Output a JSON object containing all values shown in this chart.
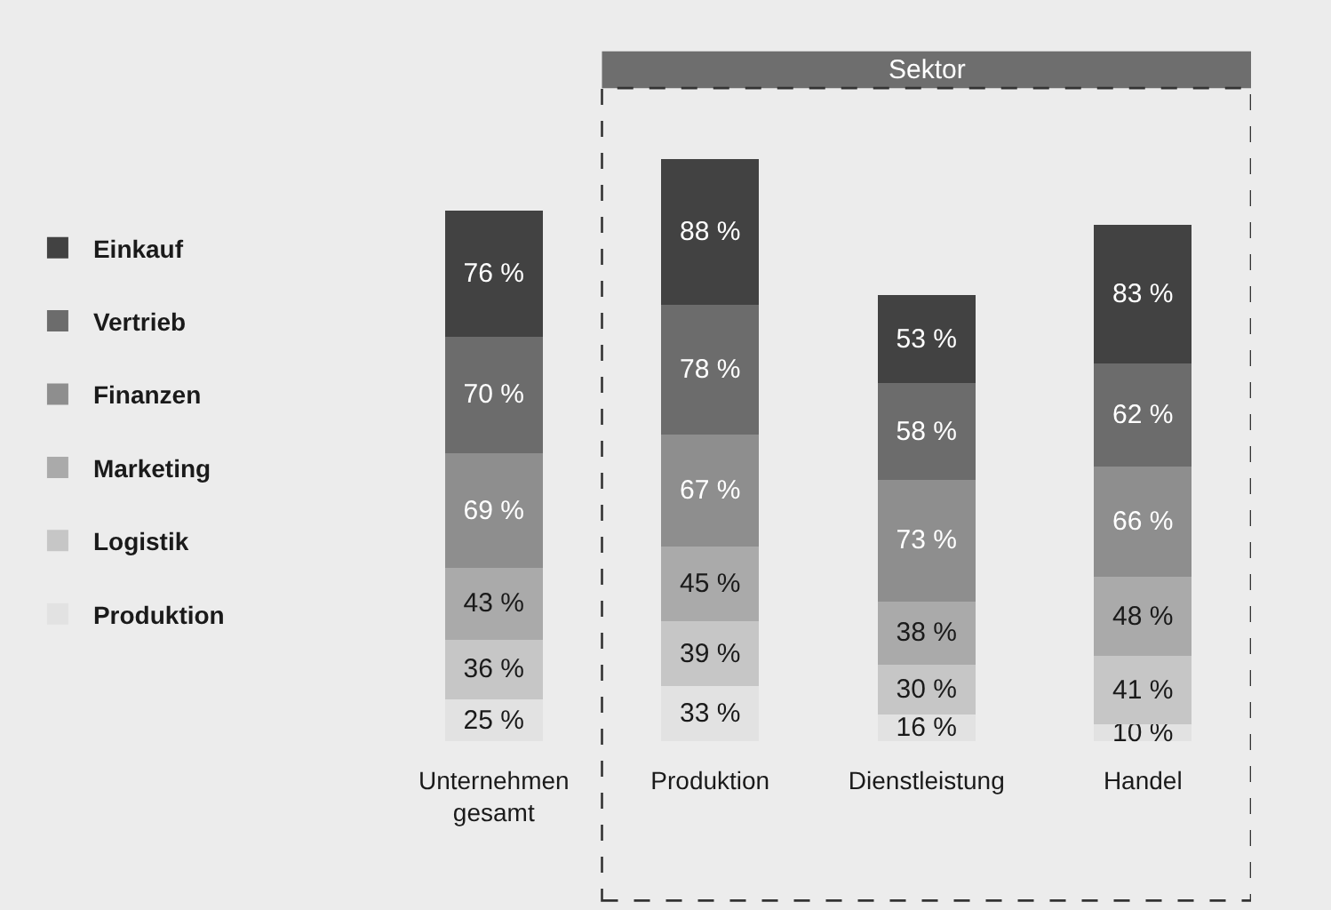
{
  "chart_data": {
    "type": "bar",
    "stacked": true,
    "legend": "left",
    "grid": false,
    "tick_labels": "x",
    "categories": [
      "Unternehmen\ngesamt",
      "Produktion",
      "Dienstleistung",
      "Handel"
    ],
    "annotations": [
      "Sektor"
    ],
    "series": [
      {
        "name": "Produktion",
        "color": "#e2e2e2",
        "values": [
          25,
          33,
          16,
          10
        ],
        "value_labels": [
          "25 %",
          "33 %",
          "16 %",
          "10 %"
        ]
      },
      {
        "name": "Logistik",
        "color": "#c6c6c6",
        "values": [
          36,
          39,
          30,
          41
        ],
        "value_labels": [
          "36 %",
          "39 %",
          "30 %",
          "41 %"
        ]
      },
      {
        "name": "Marketing",
        "color": "#aaaaaa",
        "values": [
          43,
          45,
          38,
          48
        ],
        "value_labels": [
          "43 %",
          "45 %",
          "38 %",
          "48 %"
        ]
      },
      {
        "name": "Finanzen",
        "color": "#8e8e8e",
        "values": [
          69,
          67,
          73,
          66
        ],
        "value_labels": [
          "69 %",
          "67 %",
          "73 %",
          "66 %"
        ]
      },
      {
        "name": "Vertrieb",
        "color": "#6c6c6c",
        "values": [
          70,
          78,
          58,
          62
        ],
        "value_labels": [
          "70 %",
          "78 %",
          "58 %",
          "62 %"
        ]
      },
      {
        "name": "Einkauf",
        "color": "#424242",
        "values": [
          76,
          88,
          53,
          83
        ],
        "value_labels": [
          "76 %",
          "88 %",
          "53 %",
          "83 %"
        ]
      }
    ]
  }
}
